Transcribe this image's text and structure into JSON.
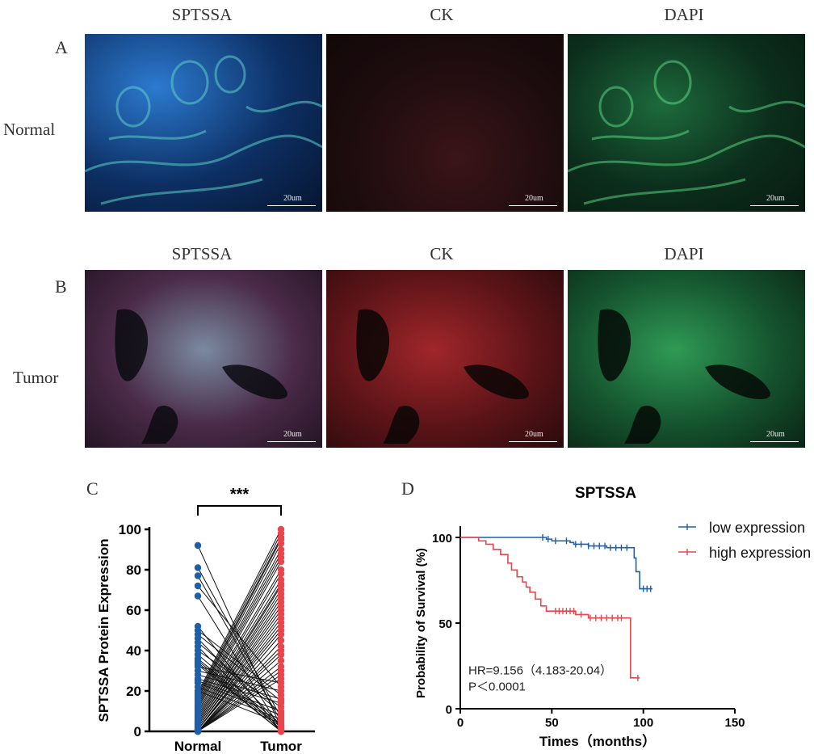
{
  "panel_letters": {
    "a": "A",
    "b": "B",
    "c": "C",
    "d": "D"
  },
  "row_labels": {
    "normal": "Normal",
    "tumor": "Tumor"
  },
  "channel_labels": {
    "sptssa": "SPTSSA",
    "ck": "CK",
    "dapi": "DAPI"
  },
  "scale_bar_label": "20um",
  "colors": {
    "sptssa_normal": "#2a6fc7",
    "ck": "#d63a3a",
    "dapi": "#3fbf66",
    "normal_points": "#1f5fa8",
    "tumor_points": "#e8464c",
    "low_line": "#1f5fa8",
    "high_line": "#e8464c"
  },
  "chart_data": [
    {
      "type": "scatter",
      "title": "",
      "ylabel": "SPTSSA Protein Expression",
      "xlabel": "",
      "categories": [
        "Normal",
        "Tumor"
      ],
      "ylim": [
        0,
        100
      ],
      "yticks": [
        0,
        20,
        40,
        60,
        80,
        100
      ],
      "significance": "***",
      "paired_series": [
        {
          "name": "Normal",
          "values": [
            92,
            81,
            77,
            72,
            67,
            52,
            50,
            48,
            46,
            44,
            42,
            40,
            38,
            36,
            35,
            34,
            33,
            32,
            30,
            28,
            26,
            25,
            24,
            22,
            20,
            19,
            18,
            17,
            16,
            15,
            14,
            13,
            12,
            11,
            10,
            9,
            8,
            7,
            6,
            5,
            5,
            4,
            4,
            3,
            3,
            2,
            2,
            1,
            1,
            1,
            0,
            0,
            0,
            0,
            0,
            0,
            0,
            0,
            0,
            0
          ]
        },
        {
          "name": "Tumor",
          "values": [
            100,
            98,
            96,
            95,
            93,
            90,
            88,
            86,
            84,
            80,
            78,
            75,
            73,
            72,
            70,
            68,
            66,
            64,
            62,
            60,
            58,
            56,
            54,
            52,
            50,
            48,
            45,
            42,
            40,
            38,
            35,
            32,
            30,
            28,
            26,
            24,
            22,
            20,
            18,
            16,
            15,
            14,
            12,
            10,
            9,
            8,
            7,
            6,
            5,
            4,
            3,
            3,
            2,
            2,
            1,
            1,
            0,
            0,
            0,
            0
          ]
        }
      ]
    },
    {
      "type": "line",
      "title": "SPTSSA",
      "xlabel": "Times（months）",
      "ylabel": "Probability of Survival (%)",
      "xlim": [
        0,
        150
      ],
      "ylim": [
        0,
        100
      ],
      "xticks": [
        0,
        50,
        100,
        150
      ],
      "yticks": [
        0,
        50,
        100
      ],
      "annotations": [
        "HR=9.156（4.183-20.04）",
        "P＜0.0001"
      ],
      "series": [
        {
          "name": "low expression",
          "x": [
            0,
            43,
            47,
            50,
            55,
            60,
            62,
            70,
            80,
            93,
            95,
            96,
            98,
            105
          ],
          "y": [
            100,
            100,
            99,
            98,
            98,
            97,
            96,
            95,
            94,
            94,
            88,
            80,
            70,
            70
          ],
          "censored_x": [
            45,
            48,
            52,
            58,
            63,
            66,
            70,
            73,
            76,
            79,
            82,
            85,
            88,
            91,
            100,
            102,
            104
          ]
        },
        {
          "name": "high expression",
          "x": [
            0,
            6,
            10,
            14,
            18,
            22,
            26,
            28,
            31,
            34,
            36,
            38,
            41,
            44,
            47,
            52,
            58,
            63,
            70,
            80,
            92,
            93,
            98
          ],
          "y": [
            100,
            100,
            98,
            96,
            93,
            90,
            85,
            81,
            77,
            74,
            71,
            68,
            64,
            60,
            57,
            57,
            57,
            55,
            53,
            53,
            53,
            18,
            18
          ],
          "censored_x": [
            52,
            54,
            56,
            58,
            60,
            62,
            66,
            71,
            74,
            77,
            80,
            83,
            86,
            88,
            97
          ]
        }
      ]
    }
  ]
}
